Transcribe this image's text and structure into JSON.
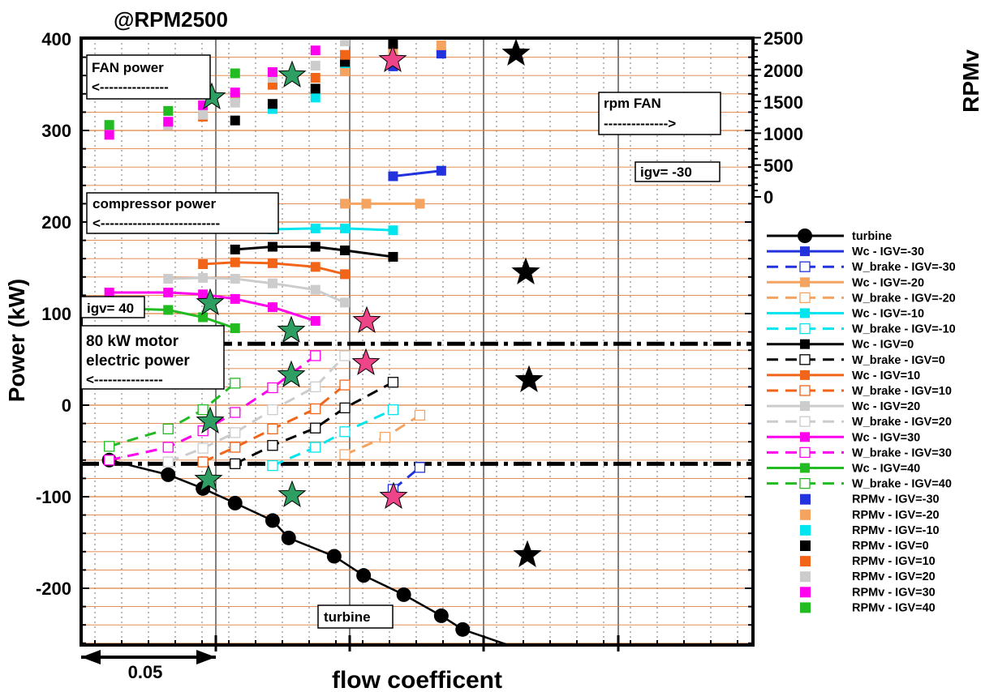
{
  "chart_data": {
    "type": "line",
    "title": "@RPM2500",
    "xlabel": "flow coefficent",
    "ylabel": "Power (kW)",
    "y2label": "RPMv",
    "ylim": [
      -265,
      400
    ],
    "y_ticks": [
      "400",
      "300",
      "200",
      "100",
      "0",
      "-100",
      "-200"
    ],
    "y2_ticks": [
      "2500",
      "2000",
      "1500",
      "1000",
      "500",
      "0"
    ],
    "x_scale_label": "0.05",
    "grid": true,
    "legend_position": "right",
    "annotations": {
      "fan_power": "FAN power",
      "fan_arrow": "<---------------",
      "rpm_fan": "rpm FAN",
      "rpm_arrow": "-------------->",
      "igv_m30": "igv= -30",
      "compressor_power": "compressor power",
      "compressor_arrow": "<--------------------------",
      "igv_40": "igv= 40",
      "motor_line1": "80 kW motor",
      "motor_line2": "electric power",
      "motor_arrow": "<---------------",
      "turbine_label": "turbine"
    },
    "colors": {
      "igv_m30": "#2233dd",
      "igv_m20": "#f4a460",
      "igv_m10": "#00e5ee",
      "igv_0": "#000000",
      "igv_10": "#f26418",
      "igv_20": "#cccccc",
      "igv_30": "#ff00ee",
      "igv_40": "#22bb22",
      "grid_orange": "#e08040",
      "star_green": "#2e9e62",
      "star_pink": "#ee4488"
    },
    "series": [
      {
        "name": "turbine",
        "x": [
          0.028,
          0.05,
          0.063,
          0.075,
          0.089,
          0.095,
          0.112,
          0.123,
          0.138,
          0.152,
          0.16,
          0.177
        ],
        "y": [
          -60,
          -76,
          -91,
          -107,
          -126,
          -145,
          -165,
          -186,
          -207,
          -230,
          -245,
          -262
        ]
      },
      {
        "name": "Wc - IGV=-30",
        "x": [
          0.134,
          0.152
        ],
        "y": [
          250,
          256
        ]
      },
      {
        "name": "W_brake - IGV=-30",
        "x": [
          0.134,
          0.144
        ],
        "y": [
          -92,
          -68
        ]
      },
      {
        "name": "Wc - IGV=-20",
        "x": [
          0.116,
          0.124,
          0.144
        ],
        "y": [
          220,
          220,
          220
        ]
      },
      {
        "name": "W_brake - IGV=-20",
        "x": [
          0.116,
          0.131,
          0.144
        ],
        "y": [
          -54,
          -35,
          -11
        ]
      },
      {
        "name": "Wc - IGV=-10",
        "x": [
          0.089,
          0.105,
          0.116,
          0.134
        ],
        "y": [
          192,
          193,
          193,
          191
        ]
      },
      {
        "name": "W_brake - IGV=-10",
        "x": [
          0.089,
          0.105,
          0.116,
          0.134
        ],
        "y": [
          -66,
          -46,
          -29,
          -5
        ]
      },
      {
        "name": "Wc - IGV=0",
        "x": [
          0.075,
          0.089,
          0.105,
          0.116,
          0.134
        ],
        "y": [
          170,
          173,
          173,
          169,
          162
        ]
      },
      {
        "name": "W_brake - IGV=0",
        "x": [
          0.075,
          0.089,
          0.105,
          0.116,
          0.134
        ],
        "y": [
          -64,
          -44,
          -25,
          -3,
          25
        ]
      },
      {
        "name": "Wc - IGV=10",
        "x": [
          0.063,
          0.075,
          0.089,
          0.105,
          0.116
        ],
        "y": [
          154,
          156,
          155,
          151,
          143
        ]
      },
      {
        "name": "W_brake - IGV=10",
        "x": [
          0.063,
          0.075,
          0.089,
          0.105,
          0.116
        ],
        "y": [
          -62,
          -46,
          -26,
          -4,
          22
        ]
      },
      {
        "name": "Wc - IGV=20",
        "x": [
          0.05,
          0.063,
          0.075,
          0.089,
          0.105,
          0.116
        ],
        "y": [
          138,
          139,
          138,
          133,
          126,
          112
        ]
      },
      {
        "name": "W_brake - IGV=20",
        "x": [
          0.05,
          0.063,
          0.075,
          0.089,
          0.105,
          0.116
        ],
        "y": [
          -62,
          -47,
          -30,
          -5,
          20,
          54
        ]
      },
      {
        "name": "Wc - IGV=30",
        "x": [
          0.028,
          0.05,
          0.063,
          0.075,
          0.089,
          0.105
        ],
        "y": [
          123,
          123,
          121,
          116,
          107,
          92
        ]
      },
      {
        "name": "W_brake - IGV=30",
        "x": [
          0.028,
          0.05,
          0.063,
          0.075,
          0.089,
          0.105
        ],
        "y": [
          -60,
          -46,
          -28,
          -8,
          19,
          54
        ]
      },
      {
        "name": "Wc - IGV=40",
        "x": [
          0.028,
          0.05,
          0.063,
          0.075
        ],
        "y": [
          106,
          104,
          96,
          84
        ]
      },
      {
        "name": "W_brake - IGV=40",
        "x": [
          0.028,
          0.05,
          0.063,
          0.075
        ],
        "y": [
          -45,
          -26,
          -5,
          24
        ]
      },
      {
        "name": "RPMv - IGV=-30",
        "x": [
          0.134,
          0.152
        ],
        "y": [
          2050,
          2250
        ]
      },
      {
        "name": "RPMv - IGV=-20",
        "x": [
          0.116,
          0.134,
          0.152
        ],
        "y": [
          1970,
          2250,
          2380
        ]
      },
      {
        "name": "RPMv - IGV=-10",
        "x": [
          0.089,
          0.105,
          0.116,
          0.134
        ],
        "y": [
          1380,
          1560,
          2100,
          2150
        ]
      },
      {
        "name": "RPMv - IGV=0",
        "x": [
          0.075,
          0.089,
          0.105,
          0.116,
          0.134
        ],
        "y": [
          1200,
          1460,
          1700,
          2120,
          2400
        ]
      },
      {
        "name": "RPMv - IGV=10",
        "x": [
          0.063,
          0.075,
          0.089,
          0.105,
          0.116
        ],
        "y": [
          1260,
          1550,
          1760,
          1870,
          2230
        ]
      },
      {
        "name": "RPMv - IGV=20",
        "x": [
          0.05,
          0.063,
          0.075,
          0.089,
          0.105,
          0.116
        ],
        "y": [
          1125,
          1290,
          1480,
          1870,
          2060,
          2440
        ]
      },
      {
        "name": "RPMv - IGV=30",
        "x": [
          0.028,
          0.05,
          0.063,
          0.075,
          0.089,
          0.105
        ],
        "y": [
          975,
          1180,
          1440,
          1640,
          1960,
          2300
        ]
      },
      {
        "name": "RPMv - IGV=40",
        "x": [
          0.028,
          0.05,
          0.063,
          0.075
        ],
        "y": [
          1130,
          1350,
          1620,
          1940
        ]
      }
    ],
    "legend": [
      "turbine",
      "Wc - IGV=-30",
      "W_brake - IGV=-30",
      "Wc - IGV=-20",
      "W_brake - IGV=-20",
      "Wc - IGV=-10",
      "W_brake - IGV=-10",
      "Wc - IGV=0",
      "W_brake - IGV=0",
      "Wc - IGV=10",
      "W_brake - IGV=10",
      "Wc - IGV=20",
      "W_brake - IGV=20",
      "Wc - IGV=30",
      "W_brake - IGV=30",
      "Wc - IGV=40",
      "W_brake - IGV=40",
      "RPMv - IGV=-30",
      "RPMv - IGV=-20",
      "RPMv - IGV=-10",
      "RPMv - IGV=0",
      "RPMv - IGV=10",
      "RPMv - IGV=20",
      "RPMv - IGV=30",
      "RPMv - IGV=40"
    ]
  }
}
